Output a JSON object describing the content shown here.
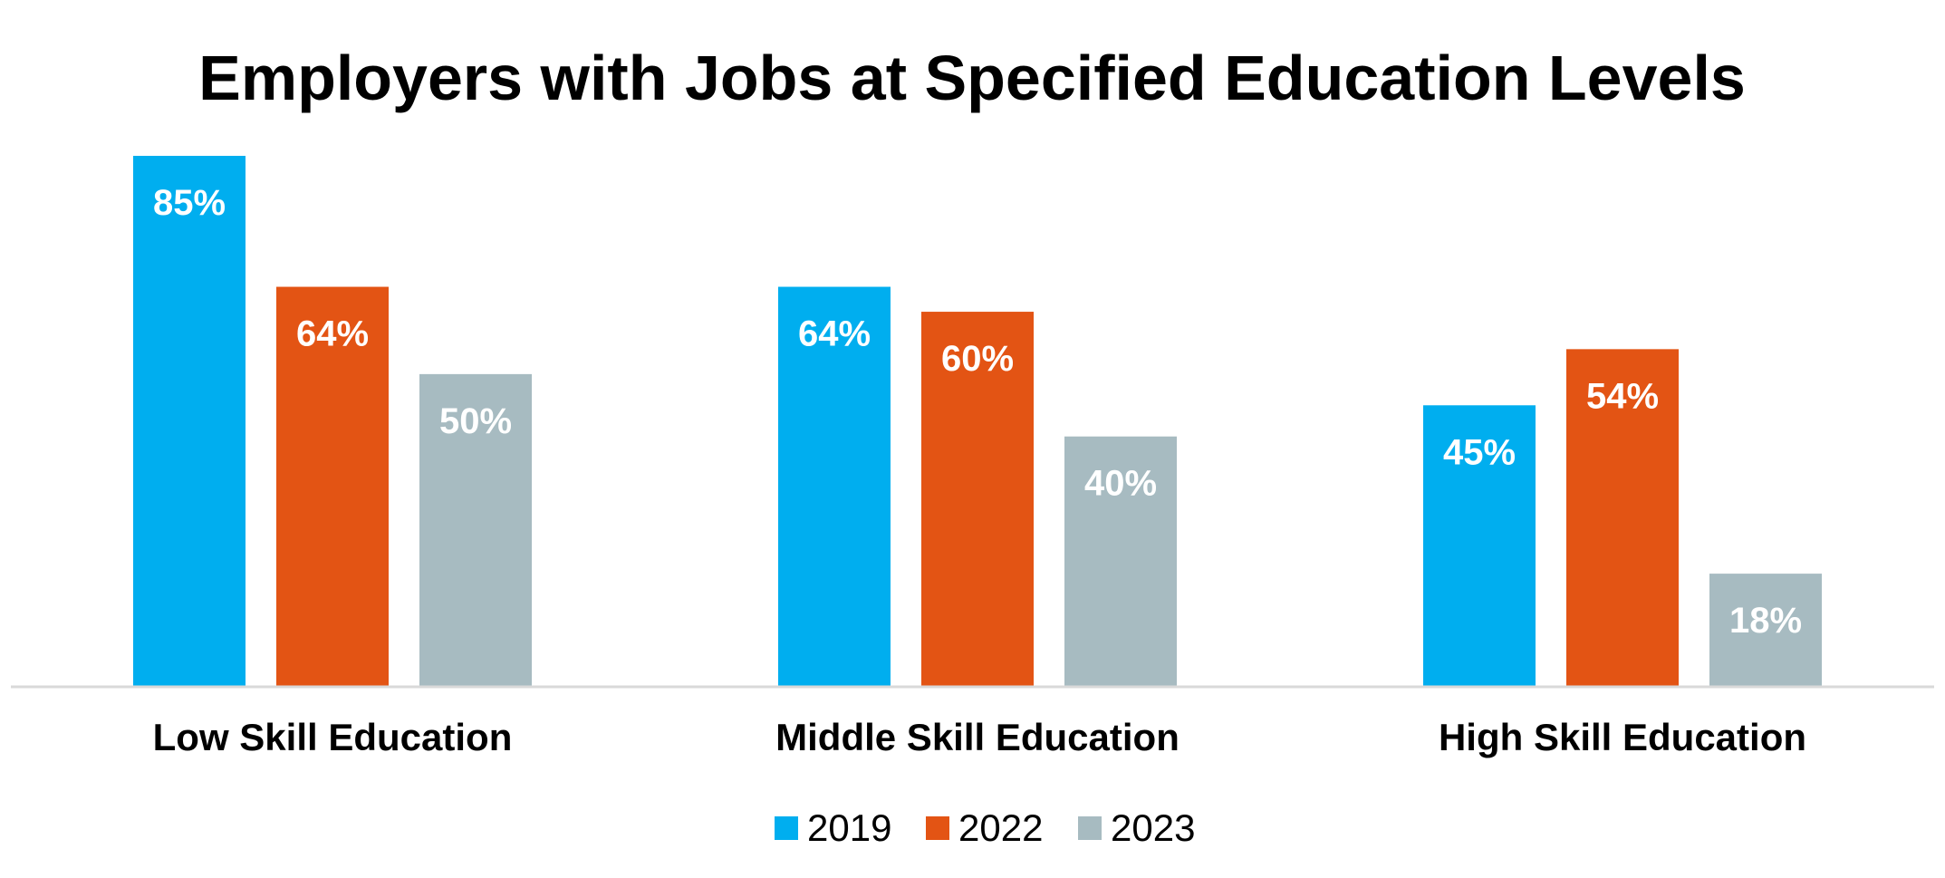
{
  "chart_data": {
    "type": "bar",
    "title": "Employers with Jobs at Specified Education Levels",
    "categories": [
      "Low Skill Education",
      "Middle Skill Education",
      "High Skill Education"
    ],
    "series": [
      {
        "name": "2019",
        "values": [
          85,
          64,
          45
        ],
        "labels": [
          "85%",
          "64%",
          "45%"
        ],
        "color": "#00AEEF"
      },
      {
        "name": "2022",
        "values": [
          64,
          60,
          54
        ],
        "labels": [
          "64%",
          "60%",
          "54%"
        ],
        "color": "#E35414"
      },
      {
        "name": "2023",
        "values": [
          50,
          40,
          18
        ],
        "labels": [
          "50%",
          "40%",
          "18%"
        ],
        "color": "#A7BBC1"
      }
    ],
    "ylim": [
      0,
      85
    ],
    "grid": false,
    "legend_position": "bottom",
    "data_label_color": "#FFFFFF",
    "axis_line_color": "#D9D9D9",
    "text_color": "#000000"
  }
}
